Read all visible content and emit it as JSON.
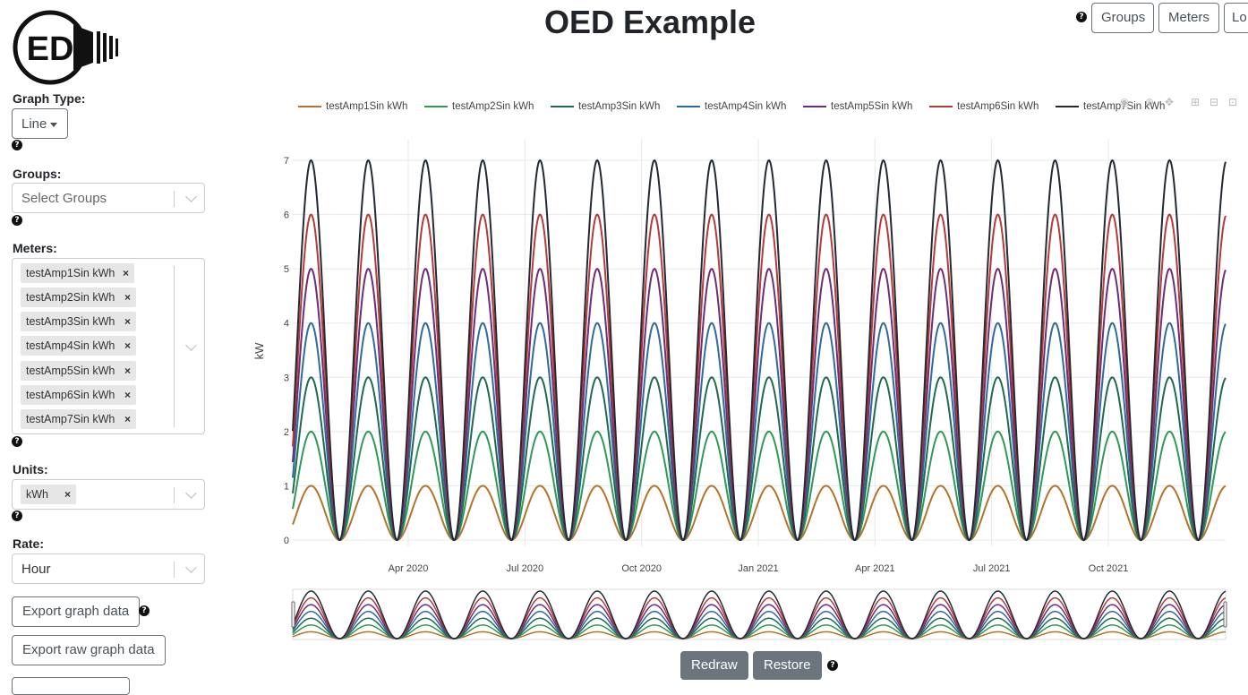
{
  "header": {
    "logo_text": "ED",
    "title": "OED Example",
    "nav": [
      {
        "label": "Groups"
      },
      {
        "label": "Meters"
      },
      {
        "label": "Lo"
      }
    ]
  },
  "sidebar": {
    "graph_type": {
      "label": "Graph Type:",
      "value": "Line"
    },
    "groups": {
      "label": "Groups:",
      "placeholder": "Select Groups"
    },
    "meters": {
      "label": "Meters:",
      "selected": [
        "testAmp1Sin kWh",
        "testAmp2Sin kWh",
        "testAmp3Sin kWh",
        "testAmp4Sin kWh",
        "testAmp5Sin kWh",
        "testAmp6Sin kWh",
        "testAmp7Sin kWh"
      ]
    },
    "units": {
      "label": "Units:",
      "selected": [
        "kWh"
      ]
    },
    "rate": {
      "label": "Rate:",
      "value": "Hour"
    },
    "buttons": {
      "export_graph": "Export graph data",
      "export_raw": "Export raw graph data"
    },
    "help_icon": "?"
  },
  "controls": {
    "redraw": "Redraw",
    "restore": "Restore"
  },
  "icons": [
    "question-circle-icon",
    "camera-icon",
    "zoom-icon",
    "pan-icon",
    "zoom-in-icon",
    "zoom-out-icon",
    "autoscale-icon"
  ],
  "chart_data": {
    "type": "line",
    "title": "",
    "xlabel": "",
    "ylabel": "kW",
    "ylim": [
      0,
      7
    ],
    "y_ticks": [
      "0",
      "1",
      "2",
      "3",
      "4",
      "5",
      "6",
      "7"
    ],
    "x_ticks": [
      "Apr 2020",
      "Jul 2020",
      "Oct 2020",
      "Jan 2021",
      "Apr 2021",
      "Jul 2021",
      "Oct 2021"
    ],
    "cycles": 16.3,
    "grid": true,
    "legend_position": "top",
    "range_slider": true,
    "series": [
      {
        "name": "testAmp1Sin kWh",
        "amplitude": 1,
        "color": "#b5722a"
      },
      {
        "name": "testAmp2Sin kWh",
        "amplitude": 2,
        "color": "#2f9a57"
      },
      {
        "name": "testAmp3Sin kWh",
        "amplitude": 3,
        "color": "#1e6b52"
      },
      {
        "name": "testAmp4Sin kWh",
        "amplitude": 4,
        "color": "#2e6c9f"
      },
      {
        "name": "testAmp5Sin kWh",
        "amplitude": 5,
        "color": "#6b2f7a"
      },
      {
        "name": "testAmp6Sin kWh",
        "amplitude": 6,
        "color": "#b73a3a"
      },
      {
        "name": "testAmp7Sin kWh",
        "amplitude": 7,
        "color": "#232a33"
      }
    ]
  }
}
